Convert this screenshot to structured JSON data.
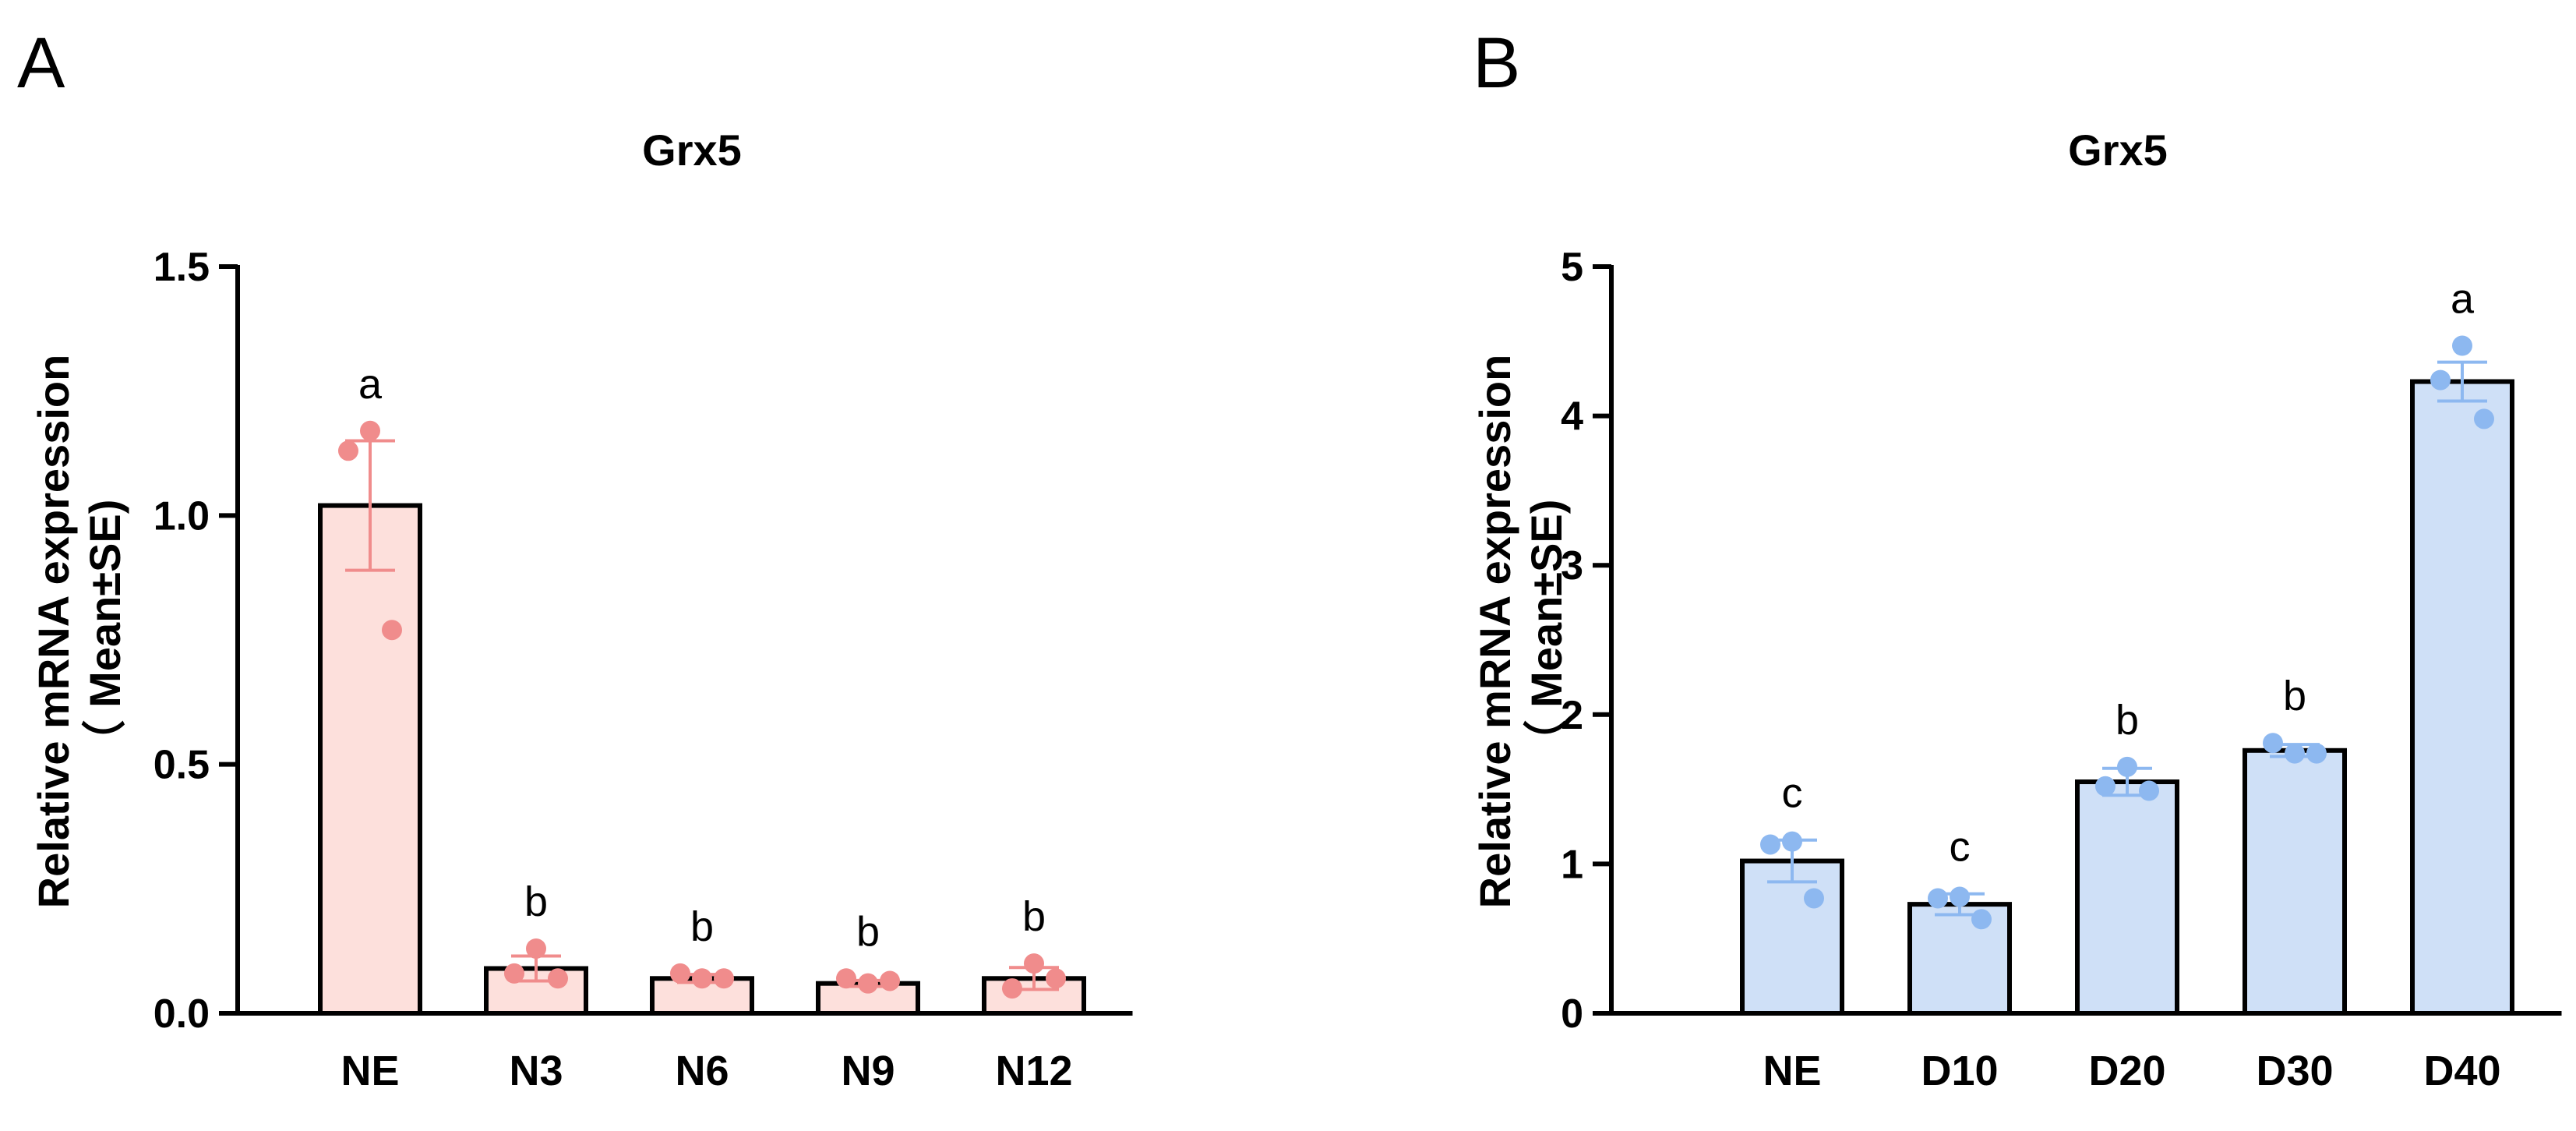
{
  "chart_data": [
    {
      "panel": "A",
      "type": "bar",
      "title": "Grx5",
      "xlabel": "",
      "ylabel": "Relative mRNA expression",
      "ylabel_sub": "（ Mean±SE)",
      "ylim": [
        0,
        1.5
      ],
      "yticks": [
        0.0,
        0.5,
        1.0,
        1.5
      ],
      "ytick_labels": [
        "0.0",
        "0.5",
        "1.0",
        "1.5"
      ],
      "categories": [
        "NE",
        "N3",
        "N6",
        "N9",
        "N12"
      ],
      "values": [
        1.02,
        0.09,
        0.07,
        0.06,
        0.07
      ],
      "errors": [
        0.13,
        0.025,
        0.008,
        0.006,
        0.022
      ],
      "points": [
        [
          1.17,
          1.13,
          0.77
        ],
        [
          0.13,
          0.08,
          0.07
        ],
        [
          0.07,
          0.08,
          0.07
        ],
        [
          0.06,
          0.07,
          0.065
        ],
        [
          0.1,
          0.05,
          0.07
        ]
      ],
      "letters": [
        "a",
        "b",
        "b",
        "b",
        "b"
      ],
      "bar_fill": "#fde0dc",
      "point_color": "#f08c8c",
      "error_color": "#f08c8c"
    },
    {
      "panel": "B",
      "type": "bar",
      "title": "Grx5",
      "xlabel": "",
      "ylabel": "Relative mRNA expression",
      "ylabel_sub": "（ Mean±SE)",
      "ylim": [
        0,
        5
      ],
      "yticks": [
        0,
        1,
        2,
        3,
        4,
        5
      ],
      "ytick_labels": [
        "0",
        "1",
        "2",
        "3",
        "4",
        "5"
      ],
      "categories": [
        "NE",
        "D10",
        "D20",
        "D30",
        "D40"
      ],
      "values": [
        1.02,
        0.73,
        1.55,
        1.76,
        4.23
      ],
      "errors": [
        0.14,
        0.07,
        0.09,
        0.04,
        0.13
      ],
      "points": [
        [
          1.15,
          1.13,
          0.77
        ],
        [
          0.78,
          0.77,
          0.63
        ],
        [
          1.65,
          1.52,
          1.49
        ],
        [
          1.74,
          1.81,
          1.74
        ],
        [
          4.47,
          4.24,
          3.98
        ]
      ],
      "letters": [
        "c",
        "c",
        "b",
        "b",
        "a"
      ],
      "bar_fill": "#cfe0f7",
      "point_color": "#8db8f0",
      "error_color": "#8db8f0"
    }
  ]
}
